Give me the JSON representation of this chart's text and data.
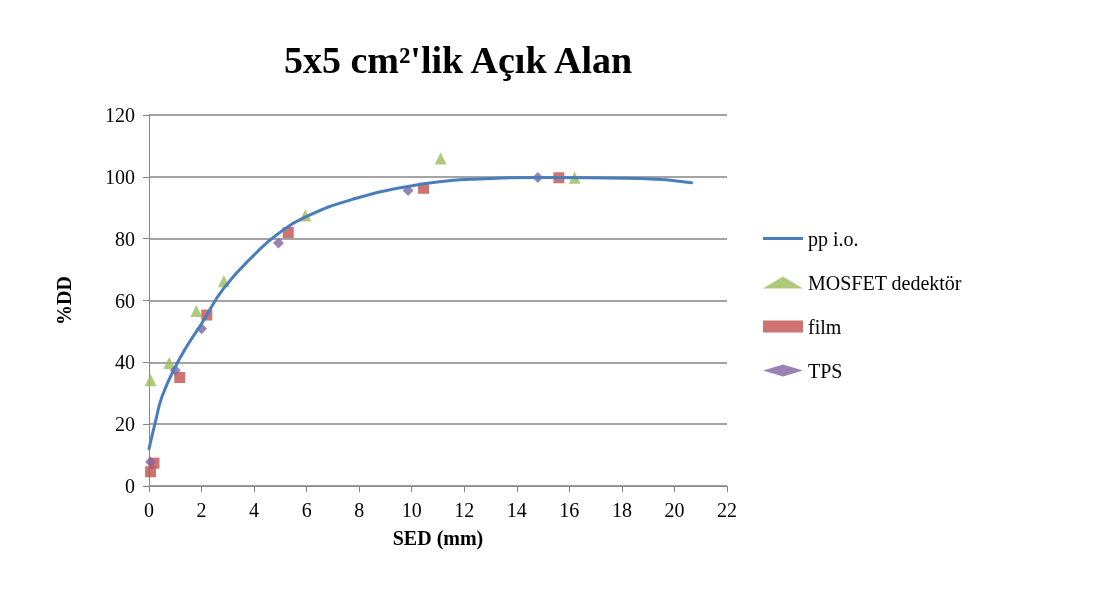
{
  "chart_data": {
    "type": "scatter",
    "title": "5x5 cm²'lik Açık Alan",
    "xlabel": "SED (mm)",
    "ylabel": "%DD",
    "xlim": [
      0,
      22
    ],
    "xticks": [
      0,
      2,
      4,
      6,
      8,
      10,
      12,
      14,
      16,
      18,
      20,
      22
    ],
    "ylim": [
      0,
      120
    ],
    "yticks": [
      0,
      20,
      40,
      60,
      80,
      100,
      120
    ],
    "grid": "y",
    "legend": "right",
    "series": [
      {
        "name": "pp i.o.",
        "type": "line",
        "marker": "none",
        "color": "#4a7ebb",
        "x": [
          0,
          0.25,
          0.5,
          1,
          1.5,
          2,
          2.85,
          4.15,
          4.9,
          5.9,
          7.85,
          9.85,
          11.4,
          12.55,
          14.8,
          18.7,
          20.65
        ],
        "values": [
          12,
          21,
          29,
          38.5,
          46,
          52.5,
          64,
          76,
          81.5,
          86.8,
          93,
          96.9,
          98.7,
          99.3,
          99.8,
          99.5,
          98.1
        ]
      },
      {
        "name": "MOSFET dedektör",
        "marker": "triangle",
        "color": "#9bbb59",
        "x": [
          0.06,
          0.77,
          1.8,
          2.85,
          5.95,
          11.1,
          16.2
        ],
        "values": [
          34.2,
          39.8,
          56.6,
          66.2,
          87.5,
          105.9,
          99.7
        ]
      },
      {
        "name": "film",
        "marker": "square",
        "color": "#c0504d",
        "x": [
          0.06,
          0.19,
          1.17,
          2.2,
          5.3,
          10.45,
          15.6
        ],
        "values": [
          4.6,
          7.4,
          35.1,
          55.3,
          82,
          96.3,
          99.7
        ]
      },
      {
        "name": "TPS",
        "marker": "diamond",
        "color": "#8064a2",
        "x": [
          0.06,
          1,
          2,
          4.93,
          9.86,
          14.8
        ],
        "values": [
          7.8,
          37.4,
          50.9,
          78.6,
          95.6,
          99.8
        ]
      }
    ]
  }
}
